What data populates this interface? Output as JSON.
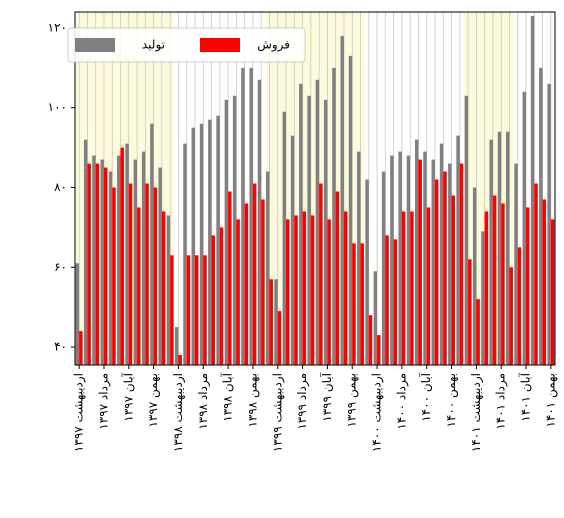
{
  "chart_data": {
    "type": "bar",
    "categories": [
      "اردیبهشت ۱۳۹۷",
      null,
      null,
      "مرداد ۱۳۹۷",
      null,
      null,
      "آبان ۱۳۹۷",
      null,
      null,
      "بهمن ۱۳۹۷",
      null,
      null,
      "اردیبهشت ۱۳۹۸",
      null,
      null,
      "مرداد ۱۳۹۸",
      null,
      null,
      "آبان ۱۳۹۸",
      null,
      null,
      "بهمن ۱۳۹۸",
      null,
      null,
      "اردیبهشت ۱۳۹۹",
      null,
      null,
      "مرداد ۱۳۹۹",
      null,
      null,
      "آبان ۱۳۹۹",
      null,
      null,
      "بهمن ۱۳۹۹",
      null,
      null,
      "اردیبهشت ۱۴۰۰",
      null,
      null,
      "مرداد ۱۴۰۰",
      null,
      null,
      "آبان ۱۴۰۰",
      null,
      null,
      "بهمن ۱۴۰۰",
      null,
      null,
      "اردیبهشت ۱۴۰۱",
      null,
      null,
      "مرداد ۱۴۰۱",
      null,
      null,
      "آبان ۱۴۰۱",
      null,
      null,
      "بهمن ۱۴۰۱"
    ],
    "series": [
      {
        "name": "تولید",
        "color": "#808080",
        "values": [
          61,
          92,
          88,
          87,
          84,
          88,
          91,
          87,
          89,
          96,
          85,
          73,
          45,
          91,
          95,
          96,
          97,
          98,
          102,
          103,
          110,
          110,
          107,
          84,
          57,
          99,
          93,
          106,
          103,
          107,
          102,
          110,
          118,
          113,
          89,
          82,
          59,
          84,
          88,
          89,
          88,
          92,
          89,
          87,
          91,
          86,
          93,
          103,
          80,
          69,
          92,
          94,
          94,
          86,
          104,
          123,
          110,
          106
        ]
      },
      {
        "name": "فروش",
        "color": "#ff0000",
        "values": [
          44,
          86,
          86,
          85,
          80,
          90,
          81,
          75,
          81,
          80,
          74,
          63,
          38,
          63,
          63,
          63,
          68,
          70,
          79,
          72,
          76,
          81,
          77,
          57,
          49,
          72,
          73,
          74,
          73,
          81,
          72,
          79,
          74,
          66,
          66,
          48,
          43,
          68,
          67,
          74,
          74,
          87,
          75,
          82,
          84,
          78,
          86,
          62,
          52,
          74,
          78,
          76,
          60,
          65,
          75,
          81,
          77,
          72
        ]
      }
    ],
    "ylim": [
      35.5,
      124
    ],
    "yticks": [
      {
        "value": 40,
        "label": "۴۰"
      },
      {
        "value": 60,
        "label": "۶۰"
      },
      {
        "value": 80,
        "label": "۸۰"
      },
      {
        "value": 100,
        "label": "۱۰۰"
      },
      {
        "value": 120,
        "label": "۱۲۰"
      }
    ],
    "highlight_ranges": [
      [
        0,
        11
      ],
      [
        23,
        34
      ],
      [
        47,
        52
      ]
    ],
    "highlight_color": "#fdfbdc",
    "grid_x": true,
    "legend": "upper left"
  }
}
